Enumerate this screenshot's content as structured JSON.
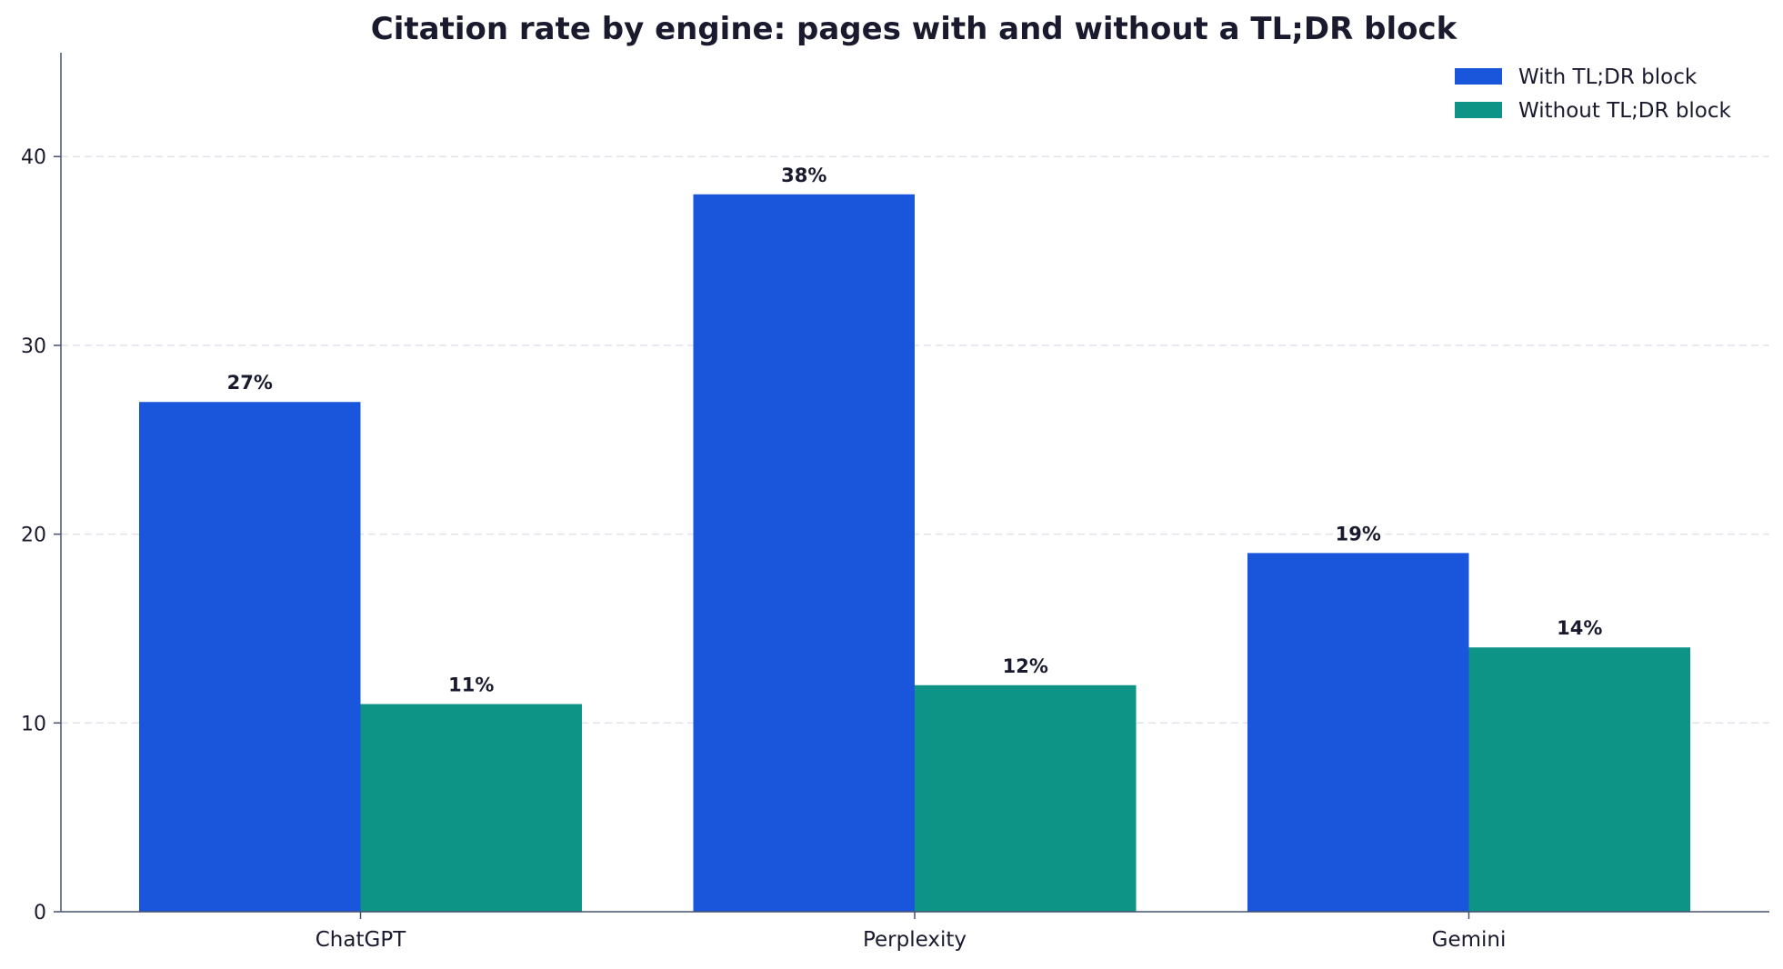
{
  "chart_data": {
    "type": "bar",
    "title": "Citation rate by engine: pages with and without a TL;DR block",
    "xlabel": "",
    "ylabel": "",
    "categories": [
      "ChatGPT",
      "Perplexity",
      "Gemini"
    ],
    "series": [
      {
        "name": "With TL;DR block",
        "color": "#1a56db",
        "values": [
          27,
          38,
          19
        ],
        "labels": [
          "27%",
          "38%",
          "19%"
        ]
      },
      {
        "name": "Without TL;DR block",
        "color": "#0e9486",
        "values": [
          11,
          12,
          14
        ],
        "labels": [
          "11%",
          "12%",
          "14%"
        ]
      }
    ],
    "ylim": [
      0,
      45.5
    ],
    "yticks": [
      0,
      10,
      20,
      30,
      40
    ],
    "grid": true,
    "legend_position": "top-right"
  }
}
